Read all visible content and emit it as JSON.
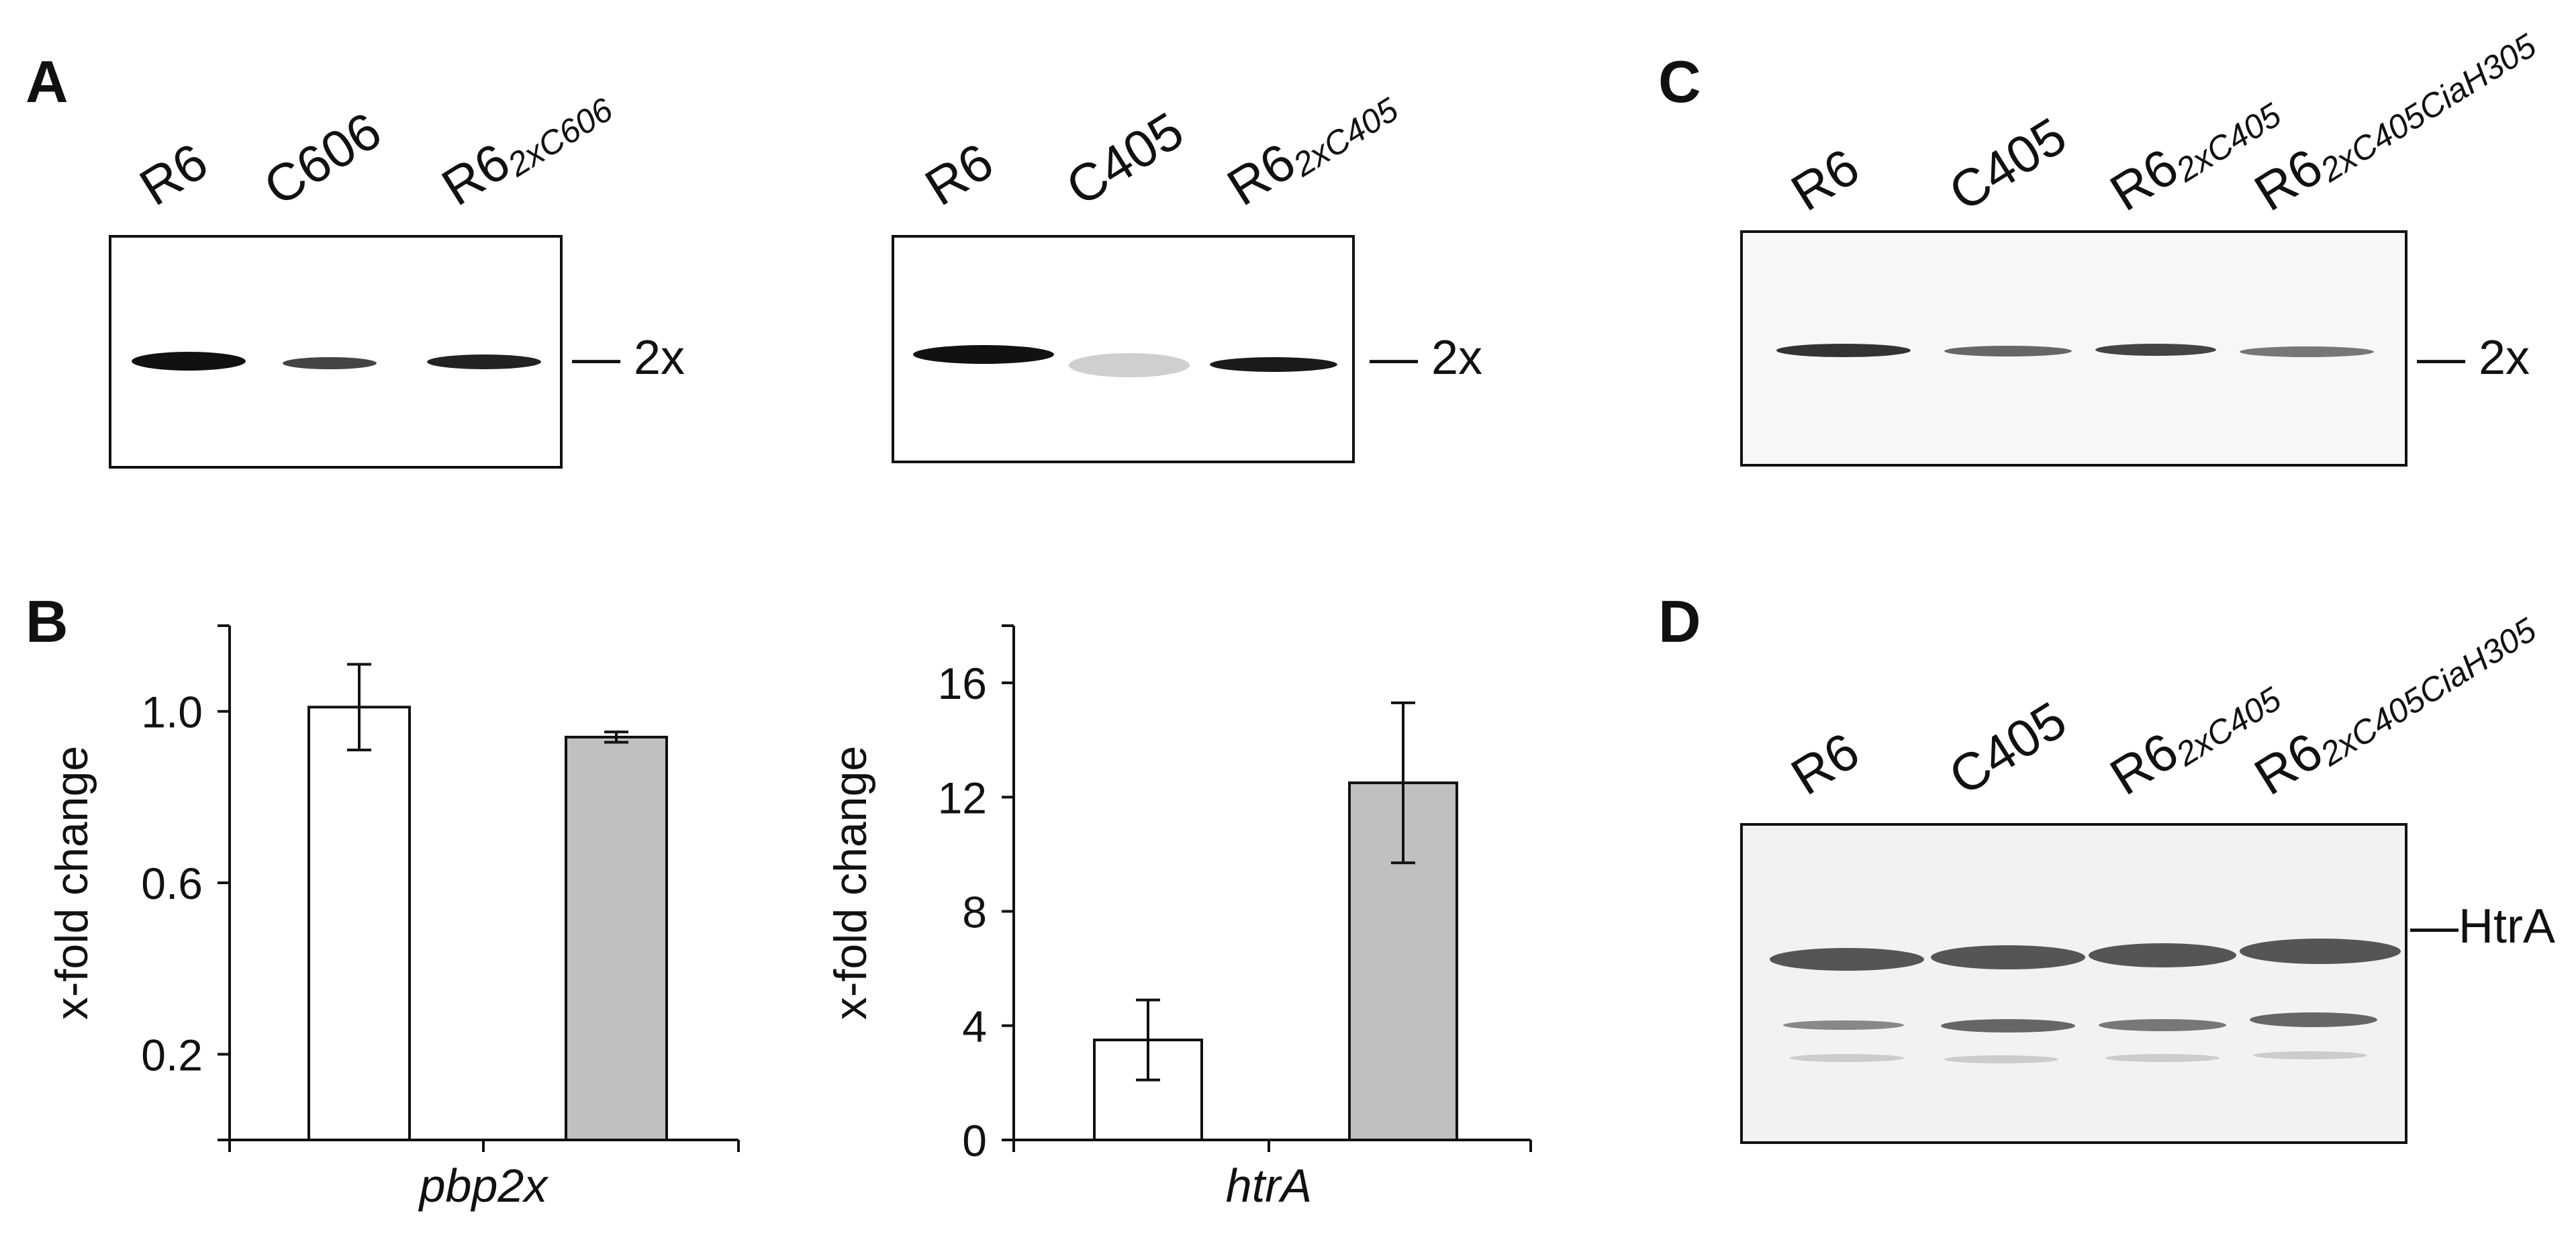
{
  "panels": {
    "a": "A",
    "b": "B",
    "c": "C",
    "d": "D"
  },
  "panel_a": {
    "blot1": {
      "lanes": [
        {
          "main": "R6",
          "sub": ""
        },
        {
          "main": "C606",
          "sub": ""
        },
        {
          "main": "R6",
          "sub": "2xC606"
        }
      ],
      "marker": "— 2x"
    },
    "blot2": {
      "lanes": [
        {
          "main": "R6",
          "sub": ""
        },
        {
          "main": "C405",
          "sub": ""
        },
        {
          "main": "R6",
          "sub": "2xC405"
        }
      ],
      "marker": "— 2x"
    }
  },
  "panel_c": {
    "lanes": [
      {
        "main": "R6",
        "sub": ""
      },
      {
        "main": "C405",
        "sub": ""
      },
      {
        "main": "R6",
        "sub": "2xC405"
      },
      {
        "main": "R6",
        "sub": "2xC405CiaH305"
      }
    ],
    "marker": "— 2x"
  },
  "panel_d": {
    "lanes": [
      {
        "main": "R6",
        "sub": ""
      },
      {
        "main": "C405",
        "sub": ""
      },
      {
        "main": "R6",
        "sub": "2xC405"
      },
      {
        "main": "R6",
        "sub": "2xC405CiaH305"
      }
    ],
    "marker": "—HtrA"
  },
  "colors": {
    "bar_open": "#ffffff",
    "bar_filled": "#c0c0c0",
    "axis": "#111111"
  },
  "chart_data": [
    {
      "type": "bar",
      "title": "",
      "xlabel": "pbp2x",
      "ylabel": "x-fold change",
      "ylim": [
        0,
        1.2
      ],
      "yticks": [
        0.2,
        0.6,
        1.0
      ],
      "ytick_labels": [
        "0.2",
        "0.6",
        "1.0"
      ],
      "series": [
        {
          "name": "white",
          "values": [
            1.01
          ],
          "errors": [
            0.1
          ]
        },
        {
          "name": "gray",
          "values": [
            0.94
          ],
          "errors": [
            0.012
          ]
        }
      ]
    },
    {
      "type": "bar",
      "title": "",
      "xlabel": "htrA",
      "ylabel": "x-fold change",
      "ylim": [
        0,
        18
      ],
      "yticks": [
        0,
        4,
        8,
        12,
        16
      ],
      "ytick_labels": [
        "0",
        "4",
        "8",
        "12",
        "16"
      ],
      "series": [
        {
          "name": "white",
          "values": [
            3.5
          ],
          "errors": [
            1.4
          ]
        },
        {
          "name": "gray",
          "values": [
            12.5
          ],
          "errors": [
            2.8
          ]
        }
      ]
    }
  ]
}
